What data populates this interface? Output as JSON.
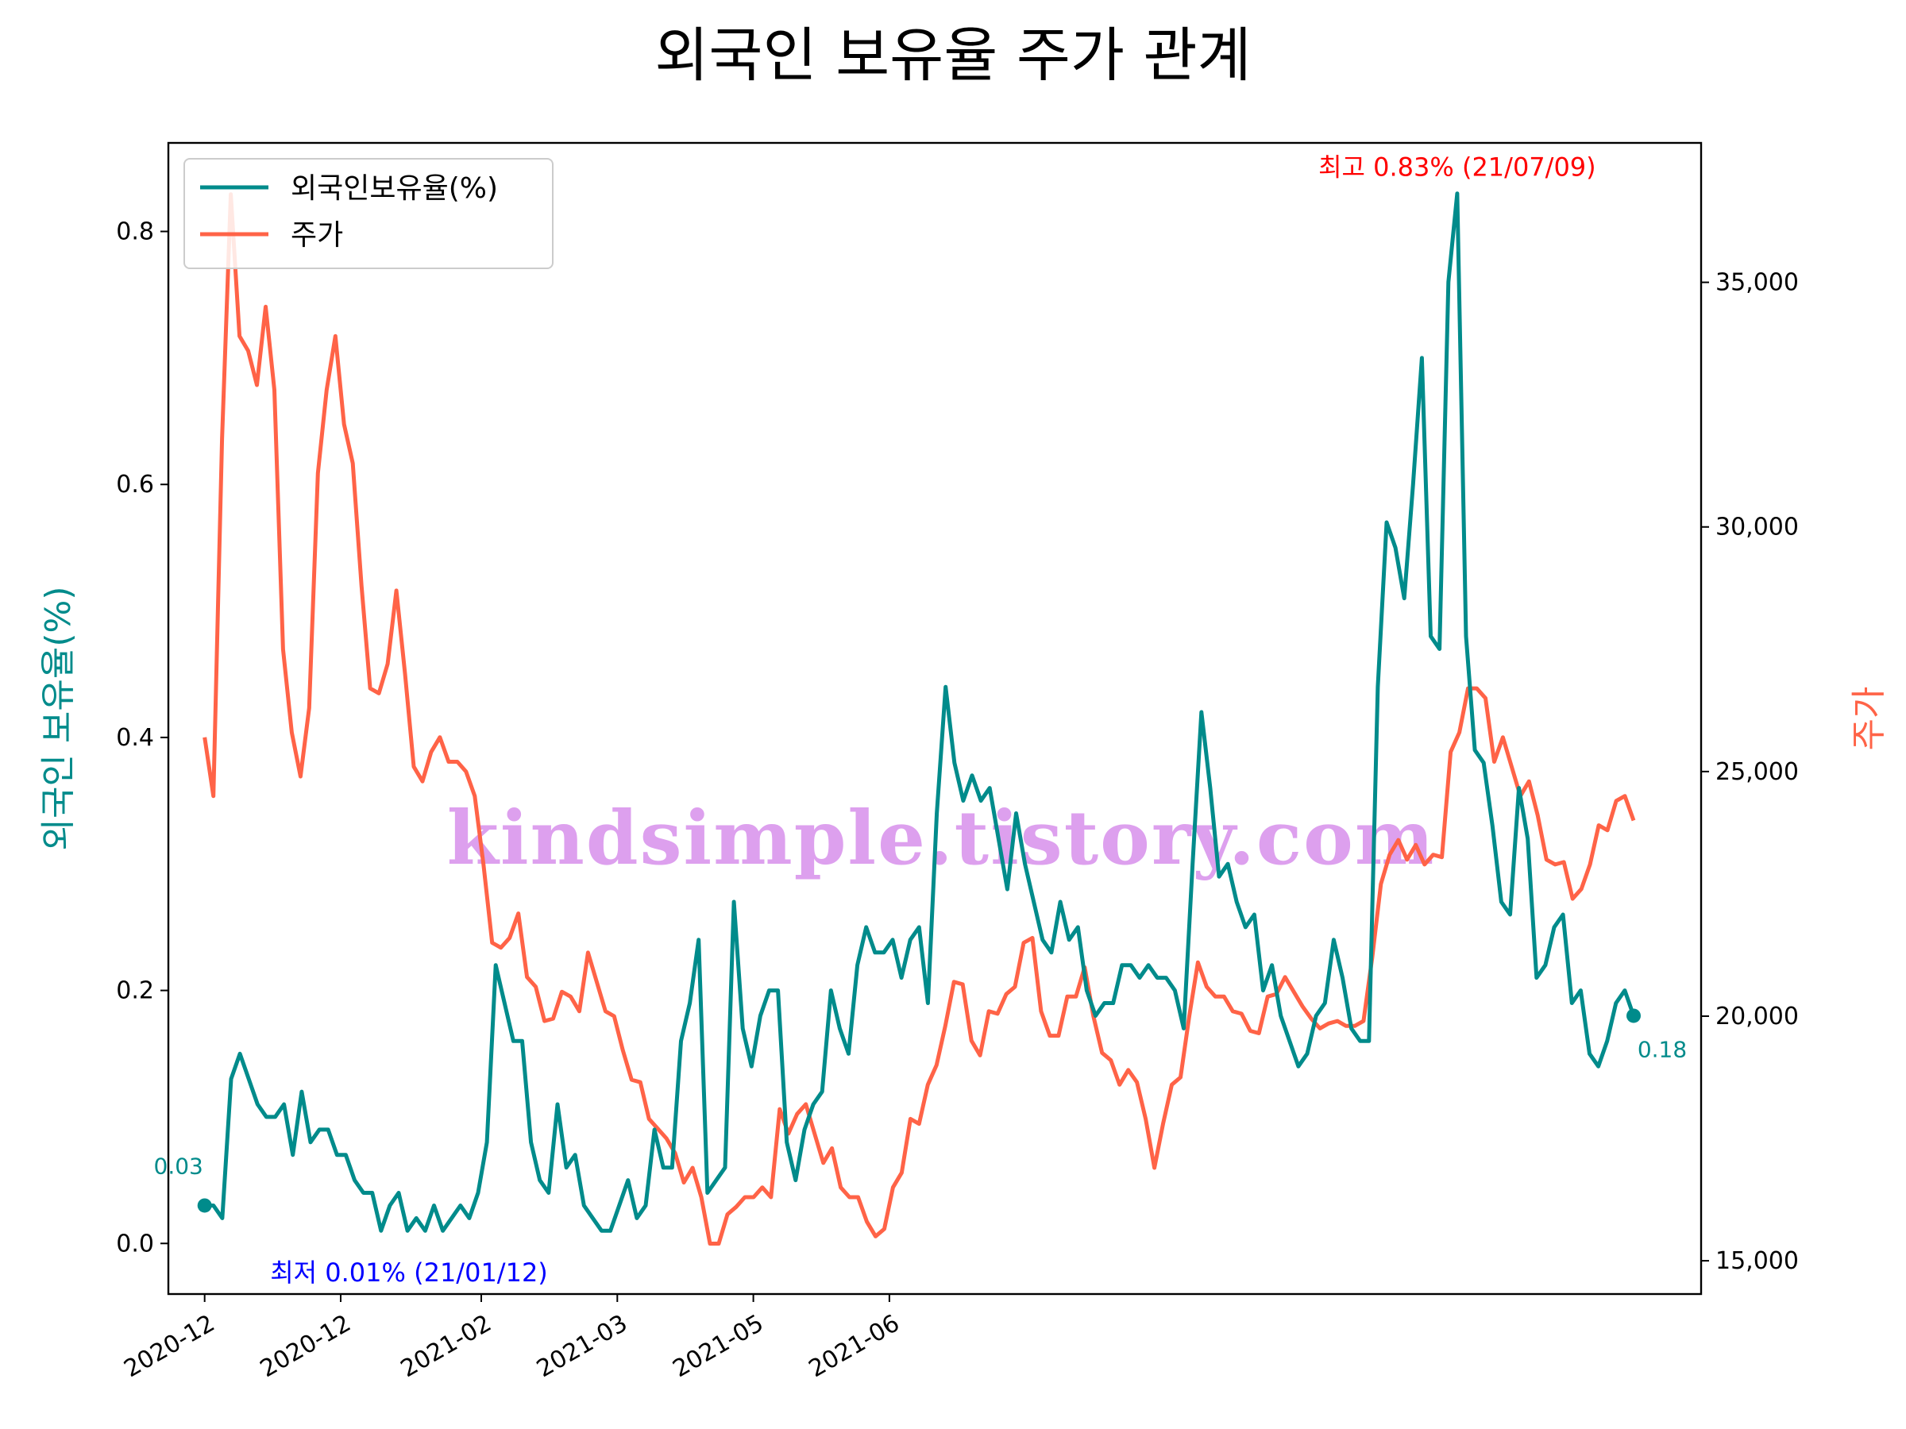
{
  "chart_data": {
    "type": "line",
    "title": "외국인 보유율 주가 관계",
    "ylabel": "외국인 보유율(%)",
    "y2label": "주가",
    "ylim": [
      -0.04,
      0.87
    ],
    "y2lim": [
      14320,
      37850
    ],
    "xlim": [
      "2020-11-23",
      "2021-10-27"
    ],
    "x_ticks": [
      {
        "date": "2020-12-01",
        "label": "2020-12"
      },
      {
        "date": "2020-12-31",
        "label": "2020-12"
      },
      {
        "date": "2021-01-31",
        "label": "2021-02"
      },
      {
        "date": "2021-03-02",
        "label": "2021-03"
      },
      {
        "date": "2021-04-01",
        "label": "2021-05"
      },
      {
        "date": "2021-05-01",
        "label": "2021-06"
      }
    ],
    "y_ticks": [
      0.0,
      0.2,
      0.4,
      0.6,
      0.8
    ],
    "y_tick_labels": [
      "0.0",
      "0.2",
      "0.4",
      "0.6",
      "0.8"
    ],
    "y2_ticks": [
      15000,
      20000,
      25000,
      30000,
      35000
    ],
    "y2_tick_labels": [
      "15,000",
      "20,000",
      "25,000",
      "30,000",
      "35,000"
    ],
    "grid": false,
    "legend_position": "top-left",
    "colors": {
      "holding": "#008b8b",
      "price": "#ff6347",
      "max": "#ff0000",
      "min": "#0000ff",
      "watermark": "#dda0ee"
    },
    "series": [
      {
        "name": "외국인보유율(%)",
        "axis": "left",
        "values": [
          0.03,
          0.03,
          0.02,
          0.13,
          0.15,
          0.13,
          0.11,
          0.1,
          0.1,
          0.11,
          0.07,
          0.12,
          0.08,
          0.09,
          0.09,
          0.07,
          0.07,
          0.05,
          0.04,
          0.04,
          0.01,
          0.03,
          0.04,
          0.01,
          0.02,
          0.01,
          0.03,
          0.01,
          0.02,
          0.03,
          0.02,
          0.04,
          0.08,
          0.22,
          0.19,
          0.16,
          0.16,
          0.08,
          0.05,
          0.04,
          0.11,
          0.06,
          0.07,
          0.03,
          0.02,
          0.01,
          0.01,
          0.03,
          0.05,
          0.02,
          0.03,
          0.09,
          0.06,
          0.06,
          0.16,
          0.19,
          0.24,
          0.04,
          0.05,
          0.06,
          0.27,
          0.17,
          0.14,
          0.18,
          0.2,
          0.2,
          0.08,
          0.05,
          0.09,
          0.11,
          0.12,
          0.2,
          0.17,
          0.15,
          0.22,
          0.25,
          0.23,
          0.23,
          0.24,
          0.21,
          0.24,
          0.25,
          0.19,
          0.34,
          0.44,
          0.38,
          0.35,
          0.37,
          0.35,
          0.36,
          0.32,
          0.28,
          0.34,
          0.3,
          0.27,
          0.24,
          0.23,
          0.27,
          0.24,
          0.25,
          0.2,
          0.18,
          0.19,
          0.19,
          0.22,
          0.22,
          0.21,
          0.22,
          0.21,
          0.21,
          0.2,
          0.17,
          0.3,
          0.42,
          0.36,
          0.29,
          0.3,
          0.27,
          0.25,
          0.26,
          0.2,
          0.22,
          0.18,
          0.16,
          0.14,
          0.15,
          0.18,
          0.19,
          0.24,
          0.21,
          0.17,
          0.16,
          0.16,
          0.44,
          0.57,
          0.55,
          0.51,
          0.6,
          0.7,
          0.48,
          0.47,
          0.76,
          0.83,
          0.48,
          0.39,
          0.38,
          0.33,
          0.27,
          0.26,
          0.36,
          0.32,
          0.21,
          0.22,
          0.25,
          0.26,
          0.19,
          0.2,
          0.15,
          0.14,
          0.16,
          0.19,
          0.2,
          0.18
        ]
      },
      {
        "name": "주가",
        "axis": "right",
        "values": [
          25700,
          24500,
          31800,
          36800,
          33900,
          33600,
          32900,
          34500,
          32800,
          27500,
          25800,
          24900,
          26300,
          31100,
          32800,
          33900,
          32100,
          31300,
          28800,
          26700,
          26600,
          27200,
          28700,
          27000,
          25100,
          24800,
          25400,
          25700,
          25200,
          25200,
          25000,
          24500,
          23100,
          21500,
          21400,
          21600,
          22100,
          20800,
          20600,
          19900,
          19950,
          20500,
          20400,
          20100,
          21300,
          20700,
          20100,
          20000,
          19300,
          18700,
          18650,
          17900,
          17700,
          17500,
          17200,
          16600,
          16900,
          16300,
          15350,
          15350,
          15950,
          16100,
          16300,
          16300,
          16500,
          16300,
          18100,
          17600,
          18000,
          18200,
          17600,
          17000,
          17300,
          16500,
          16300,
          16300,
          15800,
          15500,
          15650,
          16500,
          16800,
          17900,
          17800,
          18600,
          19000,
          19800,
          20700,
          20650,
          19500,
          19200,
          20100,
          20050,
          20450,
          20600,
          21500,
          21600,
          20100,
          19600,
          19600,
          20400,
          20400,
          21000,
          20000,
          19250,
          19100,
          18600,
          18900,
          18650,
          17900,
          16900,
          17800,
          18600,
          18750,
          20000,
          21100,
          20600,
          20400,
          20400,
          20100,
          20050,
          19700,
          19650,
          20400,
          20450,
          20800,
          20500,
          20200,
          19950,
          19750,
          19850,
          19900,
          19800,
          19800,
          19900,
          21200,
          22700,
          23300,
          23600,
          23200,
          23500,
          23100,
          23300,
          23250,
          25400,
          25800,
          26700,
          26700,
          26500,
          25200,
          25700,
          25100,
          24500,
          24800,
          24100,
          23200,
          23100,
          23150,
          22400,
          22600,
          23100,
          23900,
          23800,
          24400,
          24500,
          24000
        ]
      }
    ],
    "annotations": {
      "start_value": "0.03",
      "end_value": "0.18",
      "max_label": "최고",
      "max_value": "0.83% (21/07/09)",
      "min_label": "최저",
      "min_value": "0.01% (21/01/12)"
    },
    "watermark": "kindsimple.tistory.com"
  }
}
